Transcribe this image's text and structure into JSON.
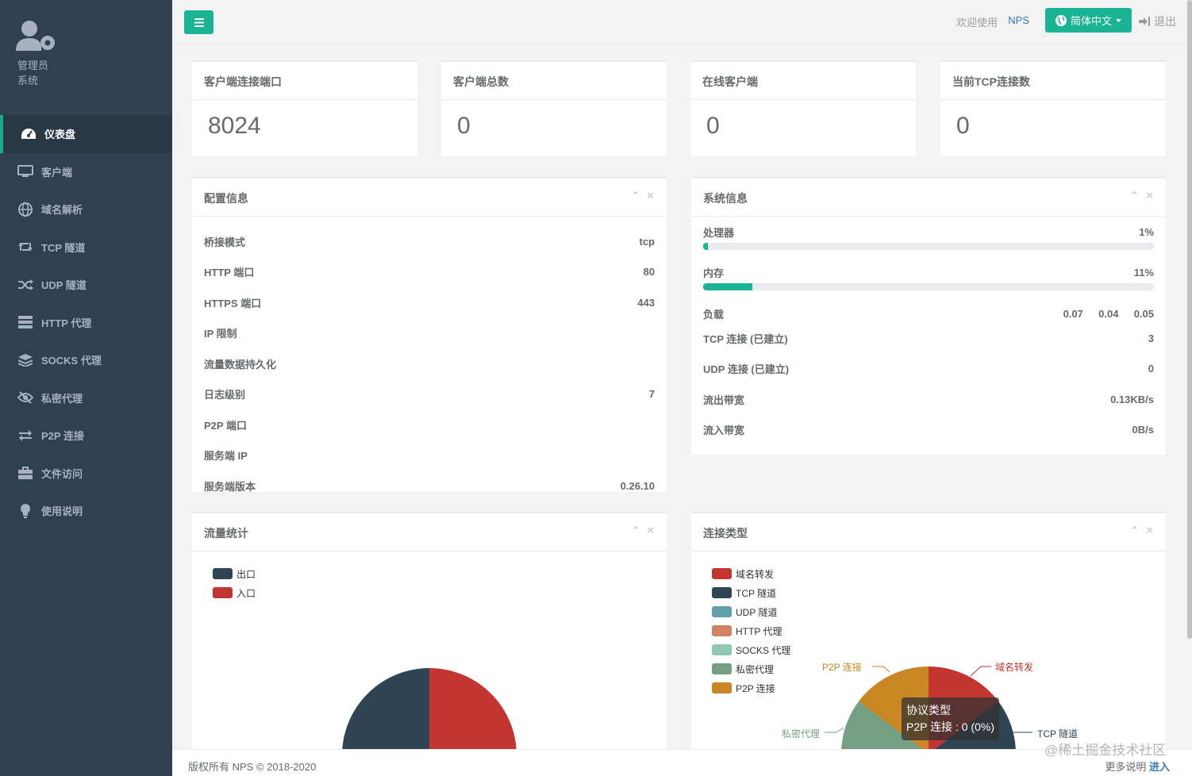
{
  "profile": {
    "role_line1": "管理员",
    "role_line2": "系统"
  },
  "sidebar": {
    "items": [
      {
        "label": "仪表盘",
        "icon": "dashboard-icon"
      },
      {
        "label": "客户端",
        "icon": "monitor-icon"
      },
      {
        "label": "域名解析",
        "icon": "globe-icon"
      },
      {
        "label": "TCP 隧道",
        "icon": "retweet-icon"
      },
      {
        "label": "UDP 隧道",
        "icon": "random-icon"
      },
      {
        "label": "HTTP 代理",
        "icon": "server-icon"
      },
      {
        "label": "SOCKS 代理",
        "icon": "layers-icon"
      },
      {
        "label": "私密代理",
        "icon": "eye-slash-icon"
      },
      {
        "label": "P2P 连接",
        "icon": "exchange-icon"
      },
      {
        "label": "文件访问",
        "icon": "briefcase-icon"
      },
      {
        "label": "使用说明",
        "icon": "lightbulb-icon"
      }
    ]
  },
  "topbar": {
    "welcome": "欢迎使用",
    "brand": "NPS",
    "language": "简体中文",
    "logout": "退出"
  },
  "stats": [
    {
      "title": "客户端连接端口",
      "value": "8024"
    },
    {
      "title": "客户端总数",
      "value": "0"
    },
    {
      "title": "在线客户端",
      "value": "0"
    },
    {
      "title": "当前TCP连接数",
      "value": "0"
    }
  ],
  "config": {
    "title": "配置信息",
    "rows": [
      {
        "label": "桥接模式",
        "value": "tcp"
      },
      {
        "label": "HTTP 端口",
        "value": "80"
      },
      {
        "label": "HTTPS 端口",
        "value": "443"
      },
      {
        "label": "IP 限制",
        "value": ""
      },
      {
        "label": "流量数据持久化",
        "value": ""
      },
      {
        "label": "日志级别",
        "value": "7"
      },
      {
        "label": "P2P 端口",
        "value": ""
      },
      {
        "label": "服务端 IP",
        "value": ""
      },
      {
        "label": "服务端版本",
        "value": "0.26.10"
      }
    ]
  },
  "system": {
    "title": "系统信息",
    "cpu": {
      "label": "处理器",
      "value": "1%",
      "fraction": 0.01
    },
    "mem": {
      "label": "内存",
      "value": "11%",
      "fraction": 0.11
    },
    "load": {
      "label": "负载",
      "v1": "0.07",
      "v2": "0.04",
      "v3": "0.05"
    },
    "rows": [
      {
        "label": "TCP 连接 (已建立)",
        "value": "3"
      },
      {
        "label": "UDP 连接 (已建立)",
        "value": "0"
      },
      {
        "label": "流出带宽",
        "value": "0.13KB/s"
      },
      {
        "label": "流入带宽",
        "value": "0B/s"
      }
    ]
  },
  "traffic": {
    "title": "流量统计",
    "legend": [
      {
        "name": "出口",
        "color": "#2f4554"
      },
      {
        "name": "入口",
        "color": "#c23531"
      }
    ]
  },
  "conn_types": {
    "title": "连接类型",
    "legend": [
      {
        "name": "域名转发",
        "color": "#c23531"
      },
      {
        "name": "TCP 隧道",
        "color": "#2f4554"
      },
      {
        "name": "UDP 隧道",
        "color": "#61a0a8"
      },
      {
        "name": "HTTP 代理",
        "color": "#d48265"
      },
      {
        "name": "SOCKS 代理",
        "color": "#91c7ae"
      },
      {
        "name": "私密代理",
        "color": "#749f83"
      },
      {
        "name": "P2P 连接",
        "color": "#ca8622"
      }
    ],
    "pie_labels": {
      "p2p": "P2P 连接",
      "domain": "域名转发",
      "private": "私密代理",
      "tcp": "TCP 隧道"
    },
    "tooltip": {
      "title": "协议类型",
      "body": "P2P 连接 : 0 (0%)"
    }
  },
  "footer": {
    "copyright": "版权所有 NPS © 2018-2020",
    "more": "更多说明",
    "enter": "进入"
  },
  "watermark": "@稀土掘金技术社区"
}
